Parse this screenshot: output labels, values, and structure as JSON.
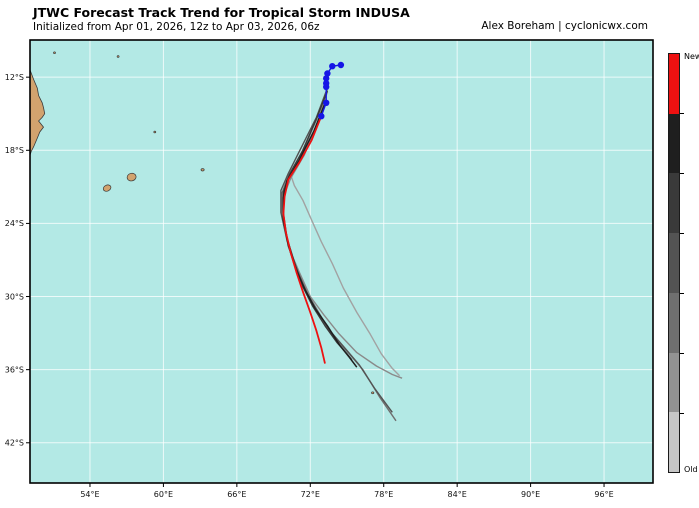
{
  "header": {
    "title": "JTWC Forecast Track Trend for Tropical Storm INDUSA",
    "subtitle": "Initialized from Apr 01, 2026, 12z to Apr 03, 2026, 06z",
    "attribution": "Alex Boreham | cyclonicwx.com"
  },
  "colors": {
    "ocean": "#b3e9e5",
    "land": "#d2a36e",
    "land_outline": "#3a3a3a",
    "grid": "rgba(255,255,255,0.75)",
    "frame": "#000000",
    "observed_blue": "#1515e6",
    "newest_red": "#ee1111",
    "tick_text": "#111111"
  },
  "colorbar": {
    "label_top": "New",
    "label_bottom": "Old",
    "segments": [
      "#ee1111",
      "#1f1f1f",
      "#3a3a3a",
      "#535353",
      "#6f6f6f",
      "#929292",
      "#c6c6c6"
    ]
  },
  "map": {
    "land_polygons": [
      {
        "name": "madagascar-northeast-coast",
        "points": [
          [
            48.8,
            11.4
          ],
          [
            49.1,
            11.4
          ],
          [
            49.4,
            12.2
          ],
          [
            49.7,
            12.9
          ],
          [
            49.8,
            13.5
          ],
          [
            50.1,
            14.1
          ],
          [
            50.2,
            14.5
          ],
          [
            50.3,
            15.0
          ],
          [
            50.1,
            15.3
          ],
          [
            49.8,
            15.6
          ],
          [
            50.2,
            16.1
          ],
          [
            49.9,
            16.5
          ],
          [
            49.7,
            17.0
          ],
          [
            49.4,
            17.7
          ],
          [
            49.2,
            18.1
          ],
          [
            49.1,
            18.4
          ],
          [
            48.8,
            18.4
          ]
        ]
      }
    ],
    "islands": [
      {
        "name": "island-reunion",
        "lon": 55.4,
        "lat": 21.1,
        "rx": 4.0,
        "ry": 3.0,
        "rot": -25
      },
      {
        "name": "island-mauritius",
        "lon": 57.4,
        "lat": 20.2,
        "rx": 4.5,
        "ry": 3.8,
        "rot": -15
      },
      {
        "name": "island-rodrigues",
        "lon": 63.2,
        "lat": 19.6,
        "rx": 1.6,
        "ry": 1.2,
        "rot": 0
      },
      {
        "name": "island-speck-a",
        "lon": 51.1,
        "lat": 10.0,
        "rx": 1.0,
        "ry": 0.9,
        "rot": 0
      },
      {
        "name": "island-speck-b",
        "lon": 56.3,
        "lat": 10.3,
        "rx": 1.0,
        "ry": 0.9,
        "rot": 0
      },
      {
        "name": "island-speck-c",
        "lon": 59.3,
        "lat": 16.5,
        "rx": 1.0,
        "ry": 0.9,
        "rot": 0
      },
      {
        "name": "island-speck-d",
        "lon": 77.1,
        "lat": 37.9,
        "rx": 1.2,
        "ry": 1.0,
        "rot": 0
      }
    ]
  },
  "chart_data": {
    "type": "line",
    "title": "JTWC Forecast Track Trend for Tropical Storm INDUSA",
    "subtitle": "Initialized from Apr 01, 2026, 12z to Apr 03, 2026, 06z",
    "grid": true,
    "lon_range_deg_e": [
      49.1,
      100.0
    ],
    "lat_range_deg_s": [
      8.95,
      45.3
    ],
    "x_ticks": [
      {
        "value": 54,
        "label": "54°E"
      },
      {
        "value": 60,
        "label": "60°E"
      },
      {
        "value": 66,
        "label": "66°E"
      },
      {
        "value": 72,
        "label": "72°E"
      },
      {
        "value": 78,
        "label": "78°E"
      },
      {
        "value": 84,
        "label": "84°E"
      },
      {
        "value": 90,
        "label": "90°E"
      },
      {
        "value": 96,
        "label": "96°E"
      }
    ],
    "y_ticks": [
      {
        "value": 12,
        "label": "12°S"
      },
      {
        "value": 18,
        "label": "18°S"
      },
      {
        "value": 24,
        "label": "24°S"
      },
      {
        "value": 30,
        "label": "30°S"
      },
      {
        "value": 36,
        "label": "36°S"
      },
      {
        "value": 42,
        "label": "42°S"
      }
    ],
    "series": [
      {
        "name": "forecast-track-1-oldest",
        "color": "#a2a2a2",
        "width": 1.4,
        "markers": false,
        "points_lon_lat_s": [
          [
            73.4,
            12.9
          ],
          [
            72.7,
            15.0
          ],
          [
            71.7,
            17.4
          ],
          [
            70.8,
            19.1
          ],
          [
            70.4,
            20.0
          ],
          [
            70.7,
            20.9
          ],
          [
            71.4,
            22.1
          ],
          [
            72.1,
            23.7
          ],
          [
            72.9,
            25.5
          ],
          [
            73.8,
            27.3
          ],
          [
            74.7,
            29.3
          ],
          [
            75.8,
            31.3
          ],
          [
            76.9,
            33.1
          ],
          [
            77.8,
            34.7
          ],
          [
            78.7,
            35.9
          ],
          [
            79.3,
            36.5
          ]
        ]
      },
      {
        "name": "forecast-track-2",
        "color": "#8a8a8a",
        "width": 1.4,
        "markers": false,
        "points_lon_lat_s": [
          [
            73.4,
            13.2
          ],
          [
            72.6,
            15.7
          ],
          [
            71.5,
            18.4
          ],
          [
            70.4,
            20.3
          ],
          [
            69.8,
            21.8
          ],
          [
            69.8,
            23.6
          ],
          [
            70.2,
            25.9
          ],
          [
            71.1,
            28.0
          ],
          [
            72.0,
            30.0
          ],
          [
            73.1,
            31.5
          ],
          [
            74.3,
            33.0
          ],
          [
            75.8,
            34.6
          ],
          [
            77.4,
            35.7
          ],
          [
            78.7,
            36.4
          ],
          [
            79.5,
            36.7
          ]
        ]
      },
      {
        "name": "forecast-track-3",
        "color": "#6f6f6f",
        "width": 1.4,
        "markers": false,
        "points_lon_lat_s": [
          [
            73.4,
            13.1
          ],
          [
            72.5,
            15.5
          ],
          [
            71.3,
            18.2
          ],
          [
            70.2,
            20.1
          ],
          [
            69.7,
            21.5
          ],
          [
            69.7,
            23.3
          ],
          [
            70.2,
            25.6
          ],
          [
            70.9,
            27.8
          ],
          [
            71.8,
            29.8
          ],
          [
            72.8,
            31.5
          ],
          [
            73.8,
            33.2
          ],
          [
            75.1,
            34.6
          ],
          [
            76.3,
            36.0
          ],
          [
            77.7,
            38.3
          ],
          [
            79.0,
            40.2
          ]
        ]
      },
      {
        "name": "forecast-track-4",
        "color": "#535353",
        "width": 1.4,
        "markers": false,
        "points_lon_lat_s": [
          [
            73.4,
            12.9
          ],
          [
            72.5,
            15.3
          ],
          [
            71.2,
            17.9
          ],
          [
            70.2,
            19.9
          ],
          [
            69.6,
            21.3
          ],
          [
            69.6,
            23.1
          ],
          [
            70.1,
            25.4
          ],
          [
            70.8,
            27.5
          ],
          [
            71.6,
            29.5
          ],
          [
            72.5,
            31.1
          ],
          [
            73.6,
            32.8
          ],
          [
            74.8,
            34.2
          ],
          [
            76.0,
            35.6
          ],
          [
            77.3,
            37.6
          ],
          [
            78.7,
            39.5
          ]
        ]
      },
      {
        "name": "forecast-track-5",
        "color": "#3a3a3a",
        "width": 1.4,
        "markers": false,
        "points_lon_lat_s": [
          [
            73.4,
            13.1
          ],
          [
            72.5,
            15.4
          ],
          [
            71.4,
            18.0
          ],
          [
            70.3,
            20.0
          ],
          [
            69.8,
            21.4
          ],
          [
            69.8,
            23.2
          ],
          [
            70.1,
            25.2
          ],
          [
            70.7,
            27.2
          ],
          [
            71.4,
            29.2
          ],
          [
            72.2,
            30.8
          ],
          [
            73.2,
            32.4
          ],
          [
            74.2,
            33.8
          ],
          [
            75.0,
            34.7
          ],
          [
            75.4,
            35.2
          ]
        ]
      },
      {
        "name": "forecast-track-6",
        "color": "#1f1f1f",
        "width": 1.5,
        "markers": false,
        "points_lon_lat_s": [
          [
            73.3,
            13.9
          ],
          [
            72.3,
            16.4
          ],
          [
            71.1,
            18.8
          ],
          [
            70.1,
            20.5
          ],
          [
            69.8,
            21.9
          ],
          [
            69.8,
            23.7
          ],
          [
            70.2,
            25.8
          ],
          [
            70.8,
            27.7
          ],
          [
            71.6,
            29.5
          ],
          [
            72.4,
            31.0
          ],
          [
            73.4,
            32.4
          ],
          [
            74.4,
            34.0
          ],
          [
            75.2,
            35.0
          ],
          [
            75.8,
            35.8
          ]
        ]
      },
      {
        "name": "forecast-track-7-newest",
        "color": "#ee1111",
        "width": 1.8,
        "markers": false,
        "points_lon_lat_s": [
          [
            72.9,
            15.2
          ],
          [
            72.1,
            17.2
          ],
          [
            71.1,
            19.0
          ],
          [
            70.2,
            20.4
          ],
          [
            69.9,
            21.8
          ],
          [
            69.8,
            23.2
          ],
          [
            70.0,
            24.7
          ],
          [
            70.4,
            26.4
          ],
          [
            70.9,
            28.1
          ],
          [
            71.4,
            29.6
          ],
          [
            72.0,
            31.3
          ],
          [
            72.5,
            32.8
          ],
          [
            72.9,
            34.2
          ],
          [
            73.2,
            35.5
          ]
        ]
      },
      {
        "name": "observed-track",
        "color": "#1515e6",
        "width": 1.4,
        "markers": true,
        "marker_r": 3.2,
        "points_lon_lat_s": [
          [
            74.5,
            11.0
          ],
          [
            73.8,
            11.1
          ],
          [
            73.4,
            11.7
          ],
          [
            73.3,
            12.1
          ],
          [
            73.3,
            12.5
          ],
          [
            73.3,
            12.8
          ],
          [
            73.3,
            14.1
          ],
          [
            72.9,
            15.2
          ]
        ]
      }
    ]
  }
}
